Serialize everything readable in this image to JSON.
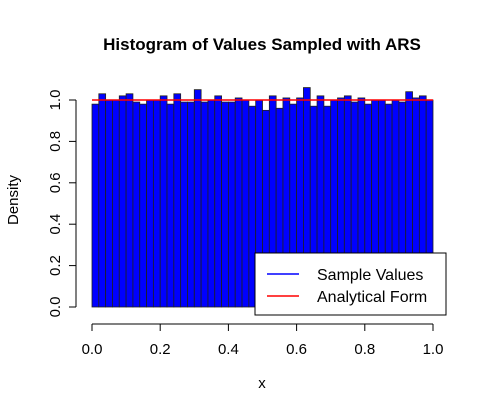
{
  "chart_data": {
    "type": "bar",
    "title": "Histogram of Values Sampled with ARS",
    "xlabel": "x",
    "ylabel": "Density",
    "xlim": [
      0,
      1
    ],
    "ylim": [
      0,
      1.06
    ],
    "bin_width": 0.02,
    "bin_starts": [
      0.0,
      0.02,
      0.04,
      0.06,
      0.08,
      0.1,
      0.12,
      0.14,
      0.16,
      0.18,
      0.2,
      0.22,
      0.24,
      0.26,
      0.28,
      0.3,
      0.32,
      0.34,
      0.36,
      0.38,
      0.4,
      0.42,
      0.44,
      0.46,
      0.48,
      0.5,
      0.52,
      0.54,
      0.56,
      0.58,
      0.6,
      0.62,
      0.64,
      0.66,
      0.68,
      0.7,
      0.72,
      0.74,
      0.76,
      0.78,
      0.8,
      0.82,
      0.84,
      0.86,
      0.88,
      0.9,
      0.92,
      0.94,
      0.96,
      0.98
    ],
    "values": [
      0.98,
      1.03,
      1.0,
      1.0,
      1.02,
      1.03,
      0.99,
      0.98,
      1.0,
      1.0,
      1.02,
      0.98,
      1.03,
      0.99,
      0.99,
      1.05,
      0.99,
      1.0,
      1.02,
      0.99,
      0.99,
      1.01,
      1.0,
      0.97,
      1.0,
      0.95,
      1.02,
      0.96,
      1.01,
      0.98,
      1.01,
      1.06,
      0.97,
      1.02,
      0.97,
      1.0,
      1.01,
      1.02,
      0.99,
      1.01,
      0.98,
      1.0,
      1.0,
      0.98,
      1.0,
      0.99,
      1.04,
      1.01,
      1.02,
      1.0
    ],
    "analytical_density": 1.0,
    "x_ticks": [
      "0.0",
      "0.2",
      "0.4",
      "0.6",
      "0.8",
      "1.0"
    ],
    "y_ticks": [
      "0.0",
      "0.2",
      "0.4",
      "0.6",
      "0.8",
      "1.0"
    ],
    "legend": {
      "position": "bottom-right",
      "entries": [
        {
          "label": "Sample Values",
          "color": "#0000ff"
        },
        {
          "label": "Analytical Form",
          "color": "#ff0000"
        }
      ]
    },
    "colors": {
      "bar_fill": "#0000ff",
      "bar_border": "#202020",
      "density_line": "#ff0000"
    }
  }
}
